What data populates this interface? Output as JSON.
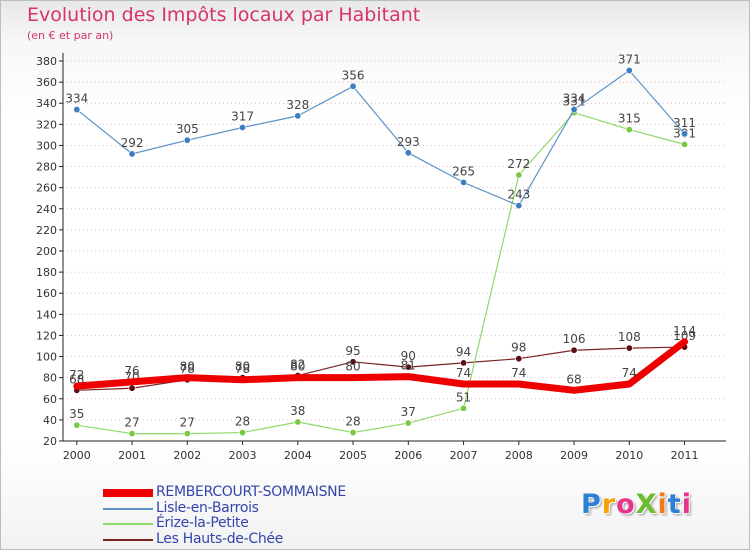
{
  "title": "Evolution des Impôts locaux par Habitant",
  "subtitle": "(en € et par an)",
  "logo": {
    "text": "ProXiti",
    "letter_colors": [
      "#2b7fd4",
      "#f5a30a",
      "#e8338c",
      "#6bbd2b",
      "#f07b1e",
      "#2b7fd4",
      "#e8338c"
    ]
  },
  "colors": {
    "title": "#d6336c",
    "grid": "#e6a0b4",
    "axis": "#222222",
    "legend_text": "#3344aa"
  },
  "chart_data": {
    "type": "line",
    "x": [
      "2000",
      "2001",
      "2002",
      "2003",
      "2004",
      "2005",
      "2006",
      "2007",
      "2008",
      "2009",
      "2010",
      "2011"
    ],
    "ylim": [
      20,
      380
    ],
    "yticks": [
      20,
      40,
      60,
      80,
      100,
      120,
      140,
      160,
      180,
      200,
      220,
      240,
      260,
      280,
      300,
      320,
      340,
      360,
      380
    ],
    "grid": true,
    "legend_position": "bottom-left",
    "series": [
      {
        "name": "Les Hauts-de-Chée",
        "color": "#7a2424",
        "marker": "#5a1010",
        "width": 1.2,
        "values": [
          68,
          70,
          78,
          80,
          82,
          95,
          90,
          94,
          98,
          106,
          108,
          109
        ]
      },
      {
        "name": "Érize-la-Petite",
        "color": "#8fd96a",
        "marker": "#7ac943",
        "width": 1.2,
        "values": [
          35,
          27,
          27,
          28,
          38,
          28,
          37,
          51,
          272,
          331,
          315,
          301
        ]
      },
      {
        "name": "Lisle-en-Barrois",
        "color": "#5a93c8",
        "marker": "#3d7ec0",
        "width": 1.2,
        "values": [
          334,
          292,
          305,
          317,
          328,
          356,
          293,
          265,
          243,
          334,
          371,
          311
        ]
      },
      {
        "name": "REMBERCOURT-SOMMAISNE",
        "color": "#ee0000",
        "marker": "#ee0000",
        "width": 7,
        "values": [
          72,
          76,
          80,
          78,
          80,
          80,
          81,
          74,
          74,
          68,
          74,
          114
        ]
      }
    ],
    "legend_order": [
      "REMBERCOURT-SOMMAISNE",
      "Lisle-en-Barrois",
      "Érize-la-Petite",
      "Les Hauts-de-Chée"
    ]
  }
}
